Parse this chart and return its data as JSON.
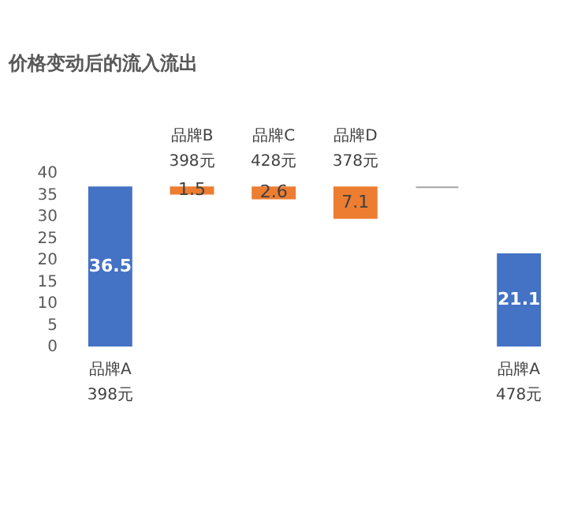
{
  "chart_data": {
    "type": "bar",
    "title": "价格变动后的流入流出",
    "categories": [
      "品牌A 398元",
      "品牌B 398元",
      "品牌C 428元",
      "品牌D 378元",
      null,
      "品牌A 478元"
    ],
    "base": [
      0,
      36.5,
      36.5,
      36.5,
      36.5,
      0
    ],
    "values": [
      36.5,
      -1.5,
      -2.6,
      -7.1,
      0,
      21.1
    ],
    "colors": [
      "#4472c4",
      "#ed7d31",
      "#ed7d31",
      "#ed7d31",
      "#a5a5a5",
      "#4472c4"
    ],
    "value_labels": [
      "36.5",
      "1.5",
      "2.6",
      "7.1",
      null,
      "21.1"
    ],
    "ylim": [
      0,
      40
    ],
    "yticks": [
      0,
      5,
      10,
      15,
      20,
      25,
      30,
      35,
      40
    ],
    "grid": false
  }
}
